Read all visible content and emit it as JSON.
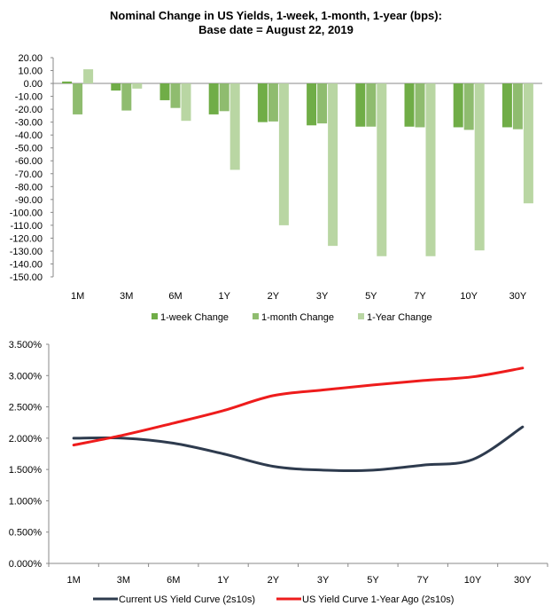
{
  "chart_data": [
    {
      "type": "bar",
      "title": "Nominal Change in US Yields, 1-week, 1-month, 1-year (bps):",
      "subtitle": "Base date = August 22, 2019",
      "categories": [
        "1M",
        "3M",
        "6M",
        "1Y",
        "2Y",
        "3Y",
        "5Y",
        "7Y",
        "10Y",
        "30Y"
      ],
      "series": [
        {
          "name": "1-week Change",
          "color": "#70ad47",
          "values": [
            1.5,
            -5.5,
            -13,
            -24,
            -30,
            -32.5,
            -33.5,
            -33.5,
            -34,
            -34
          ]
        },
        {
          "name": "1-month Change",
          "color": "#8fbc6f",
          "values": [
            -24,
            -21,
            -19,
            -21.5,
            -29.5,
            -31,
            -33.5,
            -34,
            -36,
            -35.5
          ]
        },
        {
          "name": "1-Year Change",
          "color": "#b9d6a3",
          "values": [
            11,
            -4,
            -29,
            -67,
            -110,
            -126,
            -134,
            -134,
            -129.5,
            -93
          ]
        }
      ],
      "ylim": [
        -150,
        20
      ],
      "ytick_step": 10,
      "ytick_labels": [
        "20.00",
        "10.00",
        "0.00",
        "-10.00",
        "-20.00",
        "-30.00",
        "-40.00",
        "-50.00",
        "-60.00",
        "-70.00",
        "-80.00",
        "-90.00",
        "-100.00",
        "-110.00",
        "-120.00",
        "-130.00",
        "-140.00",
        "-150.00"
      ],
      "legend_position": "bottom"
    },
    {
      "type": "line",
      "categories": [
        "1M",
        "3M",
        "6M",
        "1Y",
        "2Y",
        "3Y",
        "5Y",
        "7Y",
        "10Y",
        "30Y"
      ],
      "series": [
        {
          "name": "Current US Yield Curve (2s10s)",
          "color": "#2e3b4e",
          "values": [
            2.0,
            2.0,
            1.92,
            1.75,
            1.55,
            1.49,
            1.49,
            1.57,
            1.66,
            2.18
          ]
        },
        {
          "name": "US Yield Curve 1-Year Ago (2s10s)",
          "color": "#ee1c1c",
          "values": [
            1.89,
            2.05,
            2.24,
            2.44,
            2.68,
            2.77,
            2.85,
            2.92,
            2.98,
            3.12
          ]
        }
      ],
      "ylim": [
        0,
        3.5
      ],
      "ytick_step": 0.5,
      "ytick_labels": [
        "3.500%",
        "3.000%",
        "2.500%",
        "2.000%",
        "1.500%",
        "1.000%",
        "0.500%",
        "0.000%"
      ],
      "legend_position": "bottom"
    }
  ]
}
